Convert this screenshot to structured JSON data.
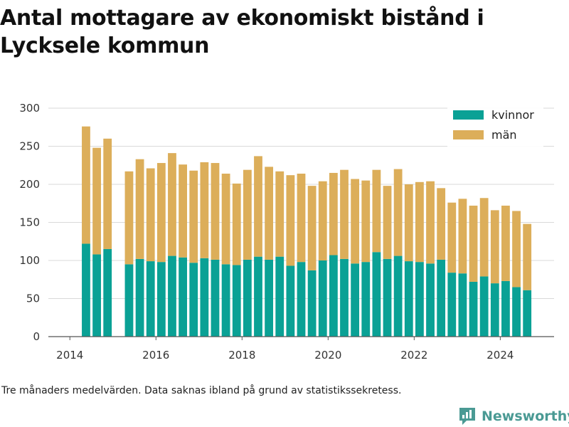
{
  "title": "Antal mottagare av ekonomiskt bistånd i Lycksele kommun",
  "note": "Tre månaders medelvärden. Data saknas ibland på grund av statistikssekretess.",
  "brand": {
    "name": "Newsworthy",
    "icon": "newsworthy-logo-icon",
    "color": "#4a9a94"
  },
  "chart_data": {
    "type": "bar",
    "stacked": true,
    "title": "Antal mottagare av ekonomiskt bistånd i Lycksele kommun",
    "xlabel": "",
    "ylabel": "",
    "x_unit": "decimal year",
    "xlim": [
      2013.5,
      2025.25
    ],
    "ylim": [
      0,
      300
    ],
    "yticks": [
      0,
      50,
      100,
      150,
      200,
      250,
      300
    ],
    "xticks": [
      2014,
      2016,
      2018,
      2020,
      2022,
      2024
    ],
    "grid": true,
    "legend_position": "top-right",
    "x": [
      2014.375,
      2014.625,
      2014.875,
      2015.375,
      2015.625,
      2015.875,
      2016.125,
      2016.375,
      2016.625,
      2016.875,
      2017.125,
      2017.375,
      2017.625,
      2017.875,
      2018.125,
      2018.375,
      2018.625,
      2018.875,
      2019.125,
      2019.375,
      2019.625,
      2019.875,
      2020.125,
      2020.375,
      2020.625,
      2020.875,
      2021.125,
      2021.375,
      2021.625,
      2021.875,
      2022.125,
      2022.375,
      2022.625,
      2022.875,
      2023.125,
      2023.375,
      2023.625,
      2023.875,
      2024.125,
      2024.375,
      2024.625
    ],
    "series": [
      {
        "name": "kvinnor",
        "color": "#0aa195",
        "values": [
          122,
          108,
          115,
          95,
          102,
          99,
          98,
          106,
          104,
          97,
          103,
          101,
          95,
          94,
          101,
          105,
          101,
          105,
          93,
          98,
          87,
          100,
          107,
          102,
          96,
          98,
          111,
          102,
          106,
          99,
          98,
          96,
          101,
          84,
          83,
          72,
          79,
          70,
          73,
          65,
          61
        ]
      },
      {
        "name": "män",
        "color": "#dcae5a",
        "values": [
          154,
          140,
          145,
          122,
          131,
          122,
          130,
          135,
          122,
          121,
          126,
          127,
          119,
          107,
          118,
          132,
          122,
          112,
          119,
          116,
          111,
          104,
          108,
          117,
          111,
          107,
          108,
          96,
          114,
          101,
          105,
          108,
          94,
          92,
          98,
          100,
          103,
          96,
          99,
          100,
          87
        ]
      }
    ]
  }
}
